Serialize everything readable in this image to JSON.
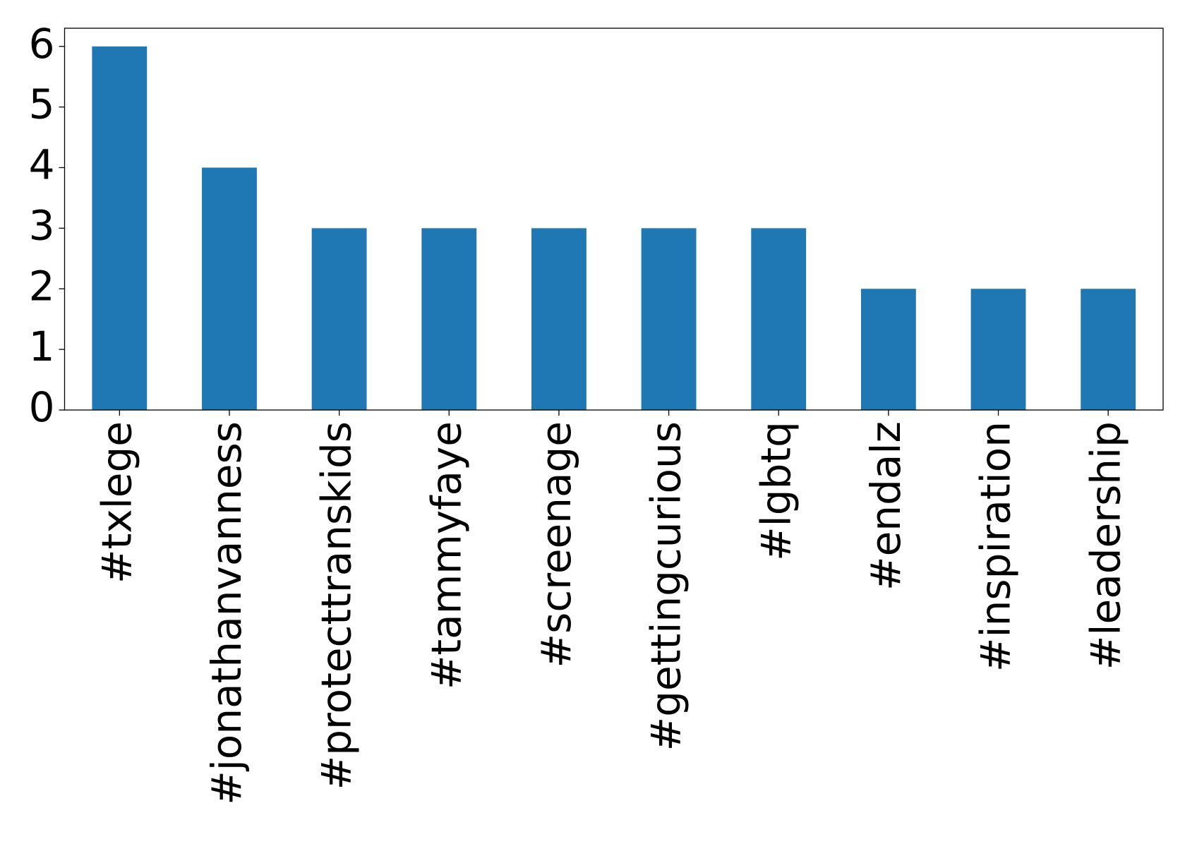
{
  "chart_data": {
    "type": "bar",
    "categories": [
      "#txlege",
      "#jonathanvanness",
      "#protecttranskids",
      "#tammyfaye",
      "#screenage",
      "#gettingcurious",
      "#lgbtq",
      "#endalz",
      "#inspiration",
      "#leadership"
    ],
    "values": [
      6,
      4,
      3,
      3,
      3,
      3,
      3,
      2,
      2,
      2
    ],
    "color": "#1f77b4",
    "ylim": [
      0,
      6.3
    ],
    "yticks": [
      0,
      1,
      2,
      3,
      4,
      5,
      6
    ],
    "grid": false
  }
}
